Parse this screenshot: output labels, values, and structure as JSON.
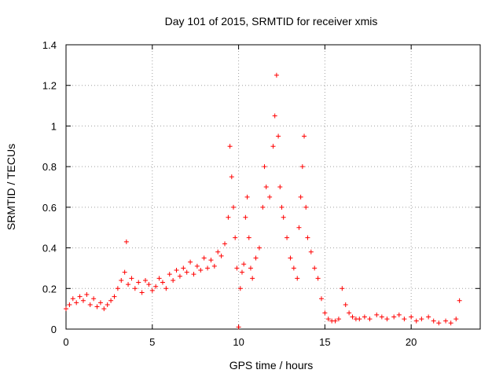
{
  "chart_data": {
    "type": "scatter",
    "title": "Day 101 of 2015, SRMTID for receiver xmis",
    "xlabel": "GPS time / hours",
    "ylabel": "SRMTID / TECUs",
    "xlim": [
      0,
      24
    ],
    "ylim": [
      0,
      1.4
    ],
    "grid": true,
    "marker": "+",
    "color": "#ff0000",
    "x_ticks": [
      0,
      5,
      10,
      15,
      20
    ],
    "x_tick_labels": [
      "0",
      "5",
      "10",
      "15",
      "20"
    ],
    "y_ticks": [
      0,
      0.2,
      0.4,
      0.6,
      0.8,
      1.0,
      1.2,
      1.4
    ],
    "y_tick_labels": [
      "0",
      "0.2",
      "0.4",
      "0.6",
      "0.8",
      "1",
      "1.2",
      "1.4"
    ],
    "series": [
      {
        "name": "SRMTID",
        "x": [
          0.0,
          0.2,
          0.4,
          0.6,
          0.8,
          1.0,
          1.2,
          1.4,
          1.6,
          1.8,
          2.0,
          2.2,
          2.4,
          2.6,
          2.8,
          3.0,
          3.2,
          3.4,
          3.5,
          3.6,
          3.8,
          4.0,
          4.2,
          4.4,
          4.6,
          4.8,
          5.0,
          5.2,
          5.4,
          5.6,
          5.8,
          6.0,
          6.2,
          6.4,
          6.6,
          6.8,
          7.0,
          7.2,
          7.4,
          7.6,
          7.8,
          8.0,
          8.2,
          8.4,
          8.6,
          8.8,
          9.0,
          9.2,
          9.4,
          9.5,
          9.6,
          9.7,
          9.8,
          9.9,
          10.0,
          10.1,
          10.2,
          10.3,
          10.4,
          10.5,
          10.6,
          10.7,
          10.8,
          11.0,
          11.2,
          11.4,
          11.5,
          11.6,
          11.8,
          12.0,
          12.1,
          12.2,
          12.3,
          12.4,
          12.5,
          12.6,
          12.8,
          13.0,
          13.2,
          13.4,
          13.5,
          13.6,
          13.7,
          13.8,
          13.9,
          14.0,
          14.2,
          14.4,
          14.6,
          14.8,
          15.0,
          15.2,
          15.4,
          15.6,
          15.8,
          16.0,
          16.2,
          16.4,
          16.6,
          16.8,
          17.0,
          17.3,
          17.6,
          18.0,
          18.3,
          18.6,
          19.0,
          19.3,
          19.6,
          20.0,
          20.3,
          20.6,
          21.0,
          21.3,
          21.6,
          22.0,
          22.3,
          22.6,
          22.8
        ],
        "y": [
          0.1,
          0.12,
          0.15,
          0.13,
          0.16,
          0.14,
          0.17,
          0.12,
          0.15,
          0.11,
          0.13,
          0.1,
          0.12,
          0.14,
          0.16,
          0.2,
          0.24,
          0.28,
          0.43,
          0.22,
          0.25,
          0.2,
          0.23,
          0.18,
          0.24,
          0.22,
          0.19,
          0.21,
          0.25,
          0.23,
          0.2,
          0.27,
          0.24,
          0.29,
          0.26,
          0.3,
          0.28,
          0.33,
          0.27,
          0.31,
          0.29,
          0.35,
          0.3,
          0.34,
          0.31,
          0.38,
          0.36,
          0.42,
          0.55,
          0.9,
          0.75,
          0.6,
          0.45,
          0.3,
          0.01,
          0.2,
          0.28,
          0.32,
          0.55,
          0.65,
          0.45,
          0.3,
          0.25,
          0.35,
          0.4,
          0.6,
          0.8,
          0.7,
          0.65,
          0.9,
          1.05,
          1.25,
          0.95,
          0.7,
          0.6,
          0.55,
          0.45,
          0.35,
          0.3,
          0.25,
          0.5,
          0.65,
          0.8,
          0.95,
          0.6,
          0.45,
          0.38,
          0.3,
          0.25,
          0.15,
          0.08,
          0.05,
          0.04,
          0.04,
          0.05,
          0.2,
          0.12,
          0.08,
          0.06,
          0.05,
          0.05,
          0.06,
          0.05,
          0.07,
          0.06,
          0.05,
          0.06,
          0.07,
          0.05,
          0.06,
          0.04,
          0.05,
          0.06,
          0.04,
          0.03,
          0.04,
          0.03,
          0.05,
          0.14
        ]
      }
    ]
  }
}
